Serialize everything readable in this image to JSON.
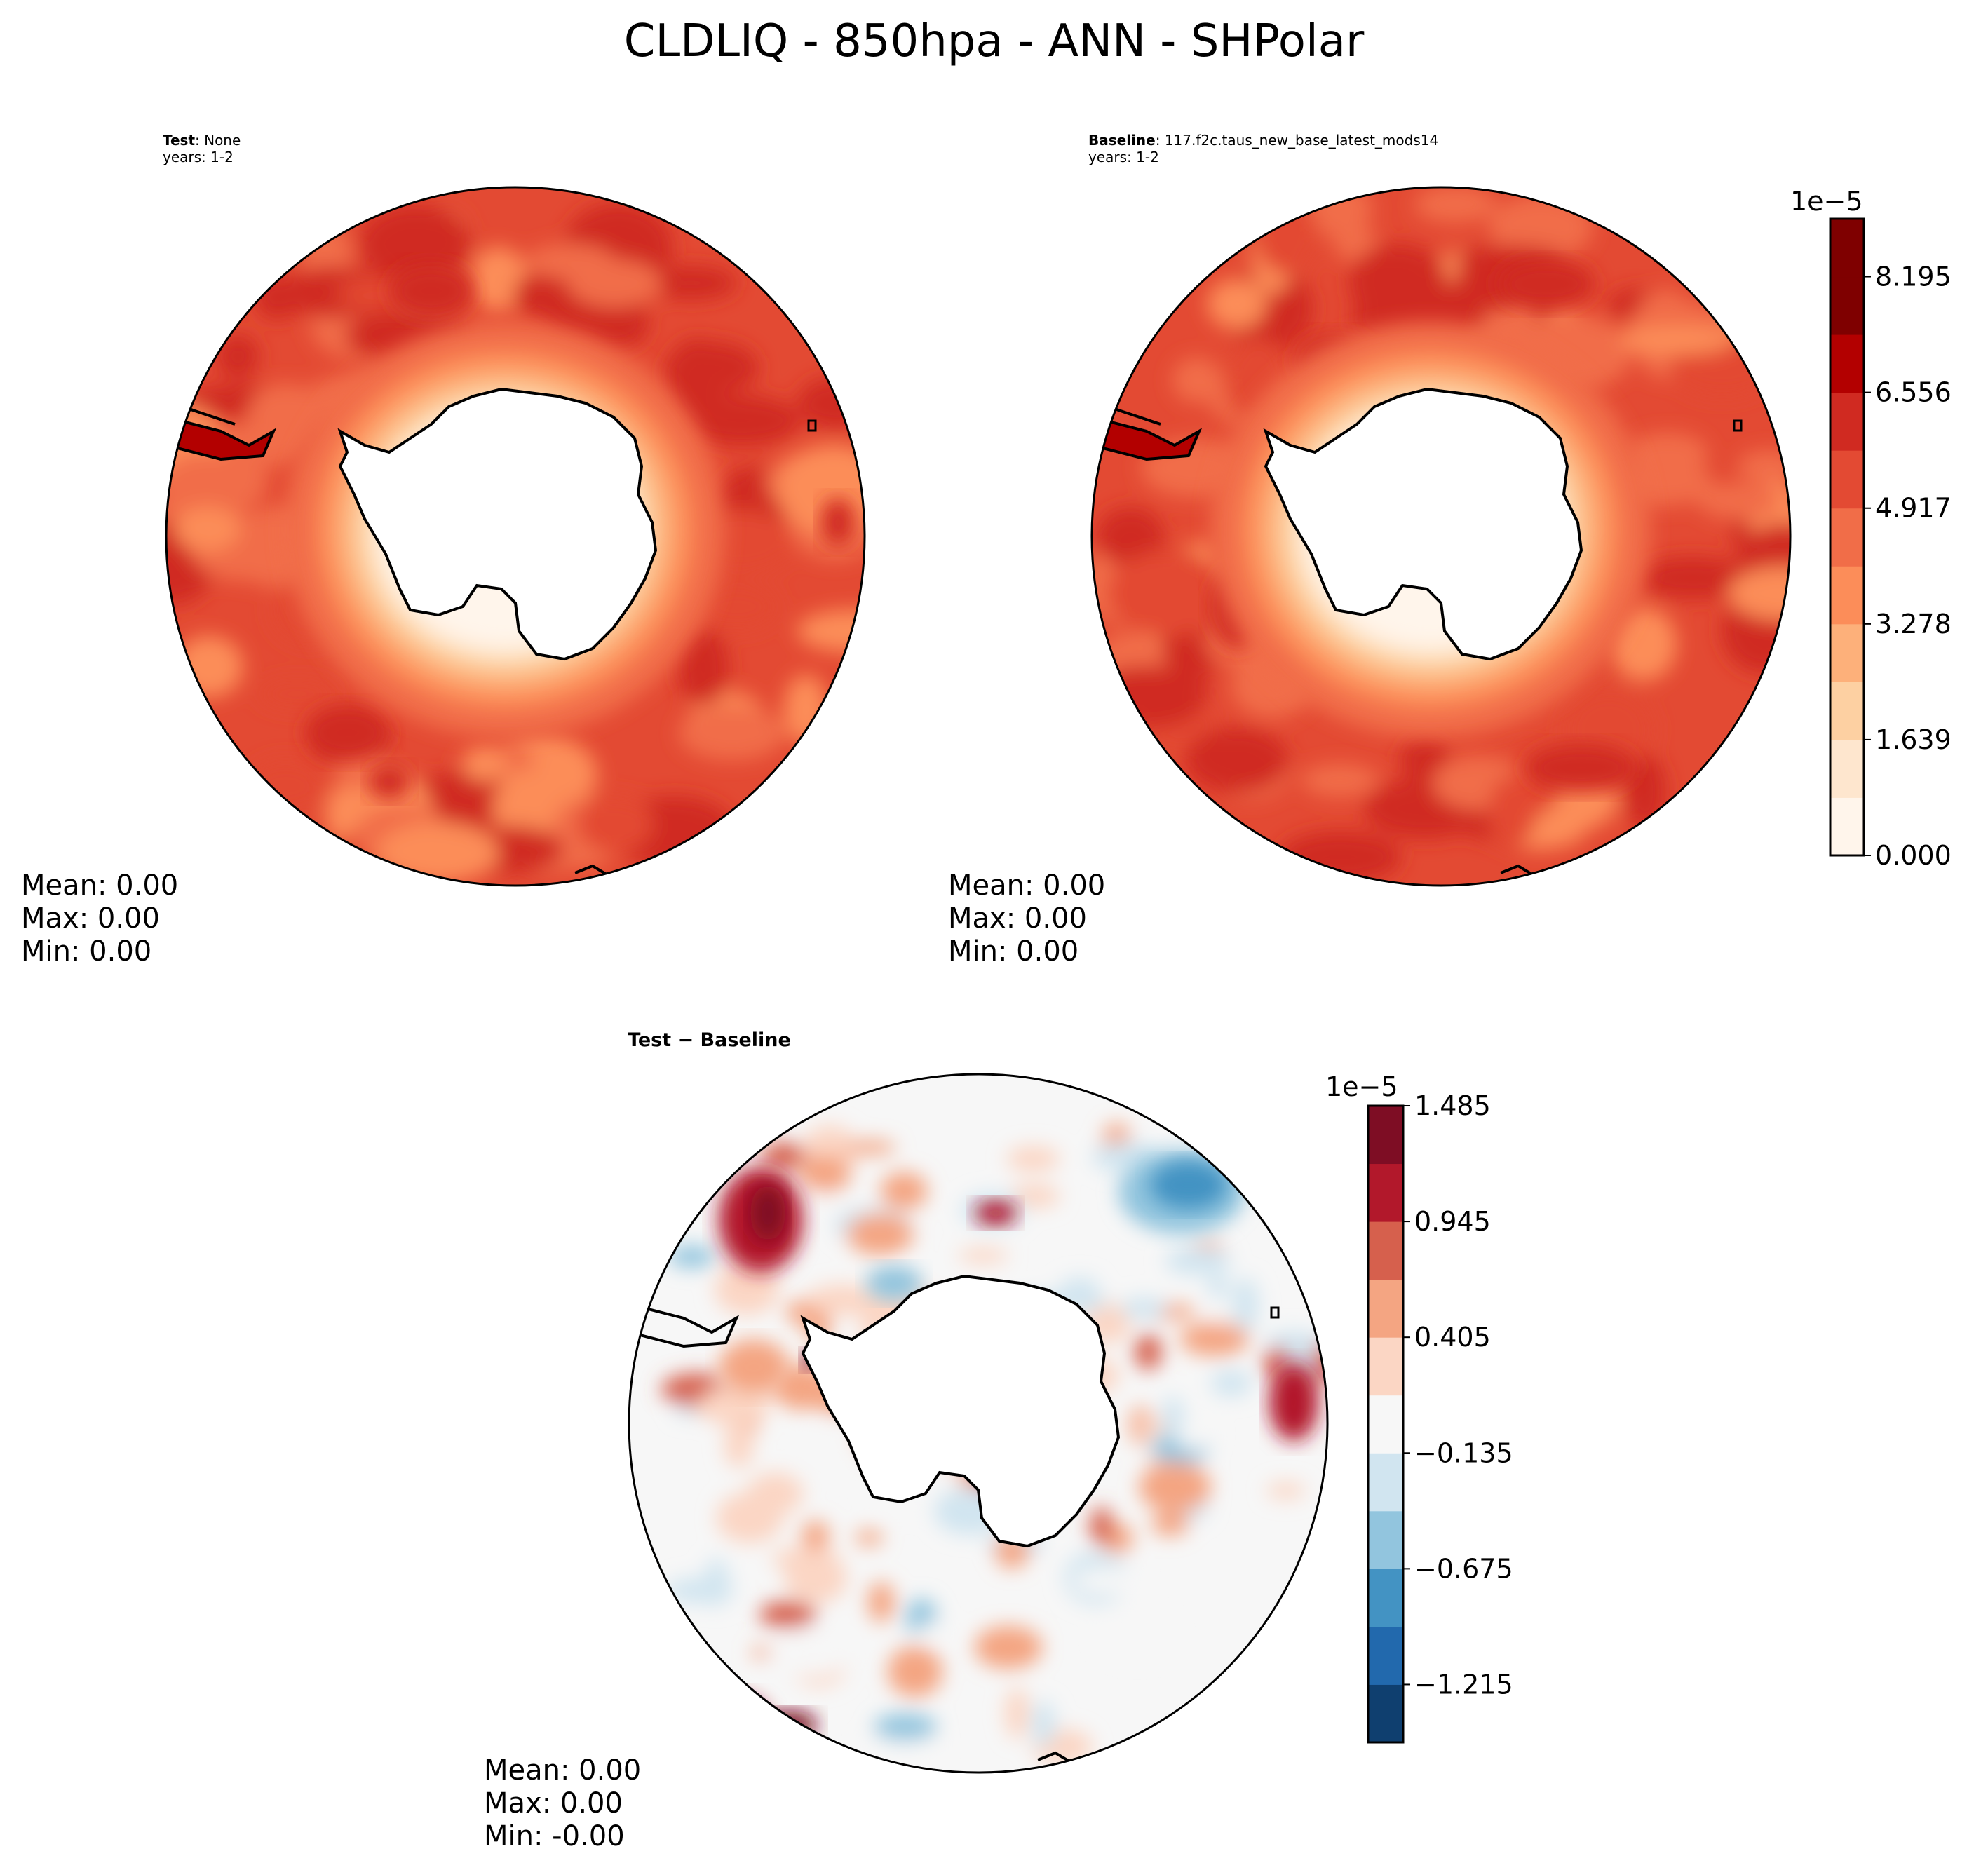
{
  "figure_title": "CLDLIQ - 850hpa - ANN - SHPolar",
  "panels": {
    "test": {
      "label_bold": "Test",
      "label_rest": ": None",
      "years": "years: 1-2",
      "mean": "Mean:  0.00",
      "max": "Max:  0.00",
      "min": "Min:  0.00"
    },
    "baseline": {
      "label_bold": "Baseline",
      "label_rest": ": 117.f2c.taus_new_base_latest_mods14",
      "years": "years: 1-2",
      "mean": "Mean:  0.00",
      "max": "Max:  0.00",
      "min": "Min:  0.00"
    },
    "diff": {
      "label_bold": "Test − Baseline",
      "mean": "Mean:  0.00",
      "max": "Max:  0.00",
      "min": "Min: -0.00"
    }
  },
  "colors": {
    "reds": [
      "#fff5eb",
      "#fee6ce",
      "#fdd0a2",
      "#fdb07a",
      "#fc8d59",
      "#f16d48",
      "#e34a33",
      "#d02a21",
      "#b30000",
      "#7f0000"
    ],
    "rdbu": [
      "#0f3f6f",
      "#2269ad",
      "#4393c3",
      "#92c5de",
      "#d1e5f0",
      "#f7f7f7",
      "#fbd6c4",
      "#f4a582",
      "#d6604d",
      "#b2182b",
      "#7e0d24"
    ],
    "land_white": "#ffffff",
    "coast": "#000000"
  },
  "chart_data": [
    {
      "type": "heatmap",
      "title": "Test: None",
      "projection": "south polar stereographic",
      "units_exponent": "1e−5",
      "colorbar_ticks": [
        "0.000",
        "1.639",
        "3.278",
        "4.917",
        "6.556",
        "8.195"
      ],
      "levels": [
        0.0,
        0.82,
        1.639,
        2.459,
        3.278,
        4.098,
        4.917,
        5.737,
        6.556,
        7.376,
        8.195,
        9.0
      ],
      "field_description_values": {
        "antarctic_interior": 0.0,
        "near_coast_band": 2.0,
        "southern_ocean_band": 5.5,
        "storm_track_maxima": 7.5
      },
      "mean": 0.0,
      "max": 0.0,
      "min": 0.0
    },
    {
      "type": "heatmap",
      "title": "Baseline: 117.f2c.taus_new_base_latest_mods14",
      "projection": "south polar stereographic",
      "units_exponent": "1e−5",
      "colorbar_ticks": [
        "0.000",
        "1.639",
        "3.278",
        "4.917",
        "6.556",
        "8.195"
      ],
      "levels": [
        0.0,
        0.82,
        1.639,
        2.459,
        3.278,
        4.098,
        4.917,
        5.737,
        6.556,
        7.376,
        8.195,
        9.0
      ],
      "field_description_values": {
        "antarctic_interior": 0.0,
        "near_coast_band": 2.0,
        "southern_ocean_band": 5.3,
        "storm_track_maxima": 7.2
      },
      "mean": 0.0,
      "max": 0.0,
      "min": 0.0
    },
    {
      "type": "heatmap",
      "title": "Test − Baseline",
      "projection": "south polar stereographic",
      "units_exponent": "1e−5",
      "colorbar_ticks": [
        "−1.215",
        "−0.675",
        "−0.135",
        "0.405",
        "0.945",
        "1.485"
      ],
      "levels": [
        -1.485,
        -1.215,
        -0.945,
        -0.675,
        -0.405,
        -0.135,
        0.135,
        0.405,
        0.675,
        0.945,
        1.215,
        1.485
      ],
      "mean": 0.0,
      "max": 0.0,
      "min": -0.0
    }
  ]
}
